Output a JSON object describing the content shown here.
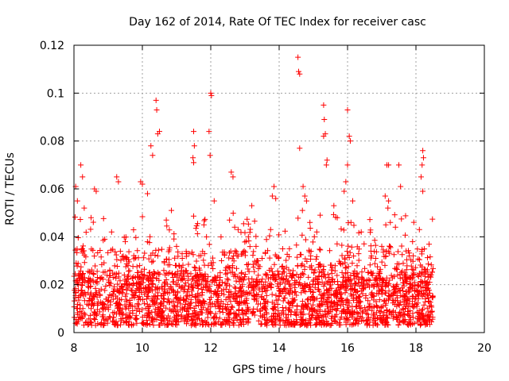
{
  "chart_data": {
    "type": "scatter",
    "title": "Day 162 of 2014, Rate Of TEC Index for receiver casc",
    "xlabel": "GPS time / hours",
    "ylabel": "ROTI / TECUs",
    "xlim": [
      8,
      20
    ],
    "ylim": [
      0,
      0.12
    ],
    "xticks": [
      8,
      10,
      12,
      14,
      16,
      18,
      20
    ],
    "yticks": [
      0,
      0.02,
      0.04,
      0.06,
      0.08,
      0.1,
      0.12
    ],
    "xtick_labels": [
      "8",
      "10",
      "12",
      "14",
      "16",
      "18",
      "20"
    ],
    "ytick_labels": [
      "0",
      "0.02",
      "0.04",
      "0.06",
      "0.08",
      "0.1",
      "0.12"
    ],
    "grid": true,
    "marker": "+",
    "color": "#ff0000",
    "series": [
      {
        "name": "ROTI",
        "baseline_range": [
          0.003,
          0.025
        ],
        "x_range": [
          8.0,
          18.5
        ],
        "points": [
          [
            8.05,
            0.061
          ],
          [
            8.1,
            0.055
          ],
          [
            8.2,
            0.07
          ],
          [
            8.25,
            0.065
          ],
          [
            8.3,
            0.052
          ],
          [
            8.6,
            0.06
          ],
          [
            8.65,
            0.059
          ],
          [
            9.25,
            0.065
          ],
          [
            9.3,
            0.063
          ],
          [
            9.95,
            0.063
          ],
          [
            10.0,
            0.062
          ],
          [
            10.15,
            0.058
          ],
          [
            10.25,
            0.078
          ],
          [
            10.3,
            0.074
          ],
          [
            10.4,
            0.097
          ],
          [
            10.42,
            0.093
          ],
          [
            10.45,
            0.083
          ],
          [
            10.5,
            0.084
          ],
          [
            10.85,
            0.051
          ],
          [
            11.5,
            0.084
          ],
          [
            11.52,
            0.078
          ],
          [
            11.48,
            0.073
          ],
          [
            11.5,
            0.071
          ],
          [
            11.95,
            0.084
          ],
          [
            12.0,
            0.1
          ],
          [
            12.02,
            0.099
          ],
          [
            11.98,
            0.074
          ],
          [
            12.1,
            0.055
          ],
          [
            12.6,
            0.067
          ],
          [
            12.65,
            0.065
          ],
          [
            12.55,
            0.047
          ],
          [
            12.7,
            0.044
          ],
          [
            13.2,
            0.053
          ],
          [
            13.85,
            0.061
          ],
          [
            13.8,
            0.057
          ],
          [
            13.9,
            0.056
          ],
          [
            13.75,
            0.043
          ],
          [
            14.55,
            0.115
          ],
          [
            14.57,
            0.109
          ],
          [
            14.6,
            0.108
          ],
          [
            14.6,
            0.077
          ],
          [
            14.7,
            0.061
          ],
          [
            14.75,
            0.057
          ],
          [
            14.8,
            0.055
          ],
          [
            14.68,
            0.051
          ],
          [
            15.3,
            0.095
          ],
          [
            15.32,
            0.089
          ],
          [
            15.35,
            0.083
          ],
          [
            15.3,
            0.082
          ],
          [
            15.4,
            0.072
          ],
          [
            15.38,
            0.07
          ],
          [
            15.2,
            0.049
          ],
          [
            15.6,
            0.053
          ],
          [
            16.0,
            0.093
          ],
          [
            16.05,
            0.082
          ],
          [
            16.08,
            0.08
          ],
          [
            15.95,
            0.063
          ],
          [
            16.0,
            0.07
          ],
          [
            15.9,
            0.059
          ],
          [
            16.1,
            0.046
          ],
          [
            16.15,
            0.055
          ],
          [
            17.15,
            0.07
          ],
          [
            17.2,
            0.07
          ],
          [
            17.1,
            0.057
          ],
          [
            17.2,
            0.055
          ],
          [
            17.18,
            0.052
          ],
          [
            17.25,
            0.046
          ],
          [
            17.5,
            0.07
          ],
          [
            17.55,
            0.061
          ],
          [
            17.4,
            0.044
          ],
          [
            18.2,
            0.076
          ],
          [
            18.22,
            0.073
          ],
          [
            18.18,
            0.07
          ],
          [
            18.15,
            0.065
          ],
          [
            18.2,
            0.059
          ],
          [
            18.1,
            0.043
          ],
          [
            8.5,
            0.048
          ],
          [
            8.9,
            0.039
          ],
          [
            9.1,
            0.042
          ],
          [
            9.5,
            0.038
          ],
          [
            10.7,
            0.047
          ],
          [
            11.0,
            0.036
          ],
          [
            11.3,
            0.033
          ],
          [
            11.8,
            0.045
          ],
          [
            12.3,
            0.04
          ],
          [
            12.8,
            0.043
          ],
          [
            13.1,
            0.04
          ],
          [
            13.5,
            0.031
          ],
          [
            14.3,
            0.035
          ],
          [
            14.9,
            0.046
          ],
          [
            15.1,
            0.042
          ],
          [
            15.7,
            0.048
          ],
          [
            16.4,
            0.042
          ],
          [
            16.7,
            0.032
          ],
          [
            17.0,
            0.036
          ],
          [
            17.8,
            0.032
          ],
          [
            18.4,
            0.021
          ]
        ]
      }
    ]
  }
}
